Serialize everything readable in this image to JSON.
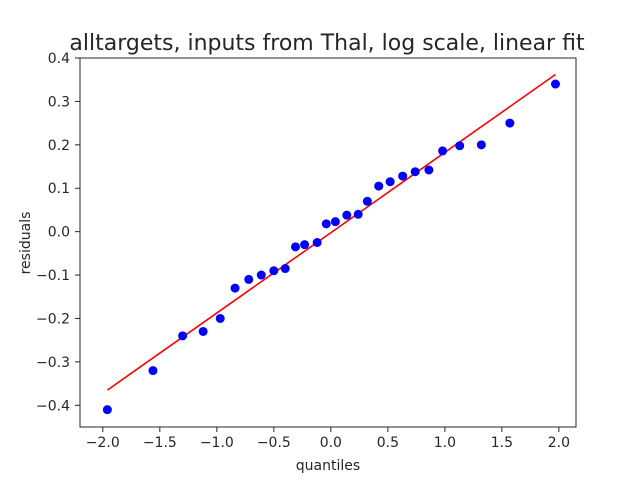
{
  "chart_data": {
    "type": "scatter",
    "title": "alltargets, inputs from Thal, log scale, linear fit",
    "xlabel": "quantiles",
    "ylabel": "residuals",
    "xlim": [
      -2.2,
      2.15
    ],
    "ylim": [
      -0.45,
      0.4
    ],
    "xticks": [
      -2.0,
      -1.5,
      -1.0,
      -0.5,
      0.0,
      0.5,
      1.0,
      1.5,
      2.0
    ],
    "xtick_labels": [
      "−2.0",
      "−1.5",
      "−1.0",
      "−0.5",
      "0.0",
      "0.5",
      "1.0",
      "1.5",
      "2.0"
    ],
    "yticks": [
      -0.4,
      -0.3,
      -0.2,
      -0.1,
      0.0,
      0.1,
      0.2,
      0.3,
      0.4
    ],
    "ytick_labels": [
      "−0.4",
      "−0.3",
      "−0.2",
      "−0.1",
      "0.0",
      "0.1",
      "0.2",
      "0.3",
      "0.4"
    ],
    "grid": false,
    "series": [
      {
        "type": "scatter",
        "color": "#0000ff",
        "x": [
          -1.96,
          -1.56,
          -1.3,
          -1.12,
          -0.97,
          -0.84,
          -0.72,
          -0.61,
          -0.5,
          -0.4,
          -0.31,
          -0.23,
          -0.12,
          -0.04,
          0.04,
          0.14,
          0.24,
          0.32,
          0.42,
          0.52,
          0.63,
          0.74,
          0.86,
          0.98,
          1.13,
          1.32,
          1.57,
          1.97
        ],
        "y": [
          -0.41,
          -0.32,
          -0.24,
          -0.23,
          -0.2,
          -0.13,
          -0.11,
          -0.1,
          -0.09,
          -0.085,
          -0.035,
          -0.03,
          -0.025,
          0.018,
          0.023,
          0.038,
          0.04,
          0.07,
          0.105,
          0.115,
          0.128,
          0.138,
          0.142,
          0.186,
          0.198,
          0.2,
          0.25,
          0.34
        ]
      },
      {
        "type": "line",
        "color": "#ff0000",
        "x": [
          -1.96,
          1.97
        ],
        "y": [
          -0.365,
          0.362
        ]
      }
    ]
  }
}
